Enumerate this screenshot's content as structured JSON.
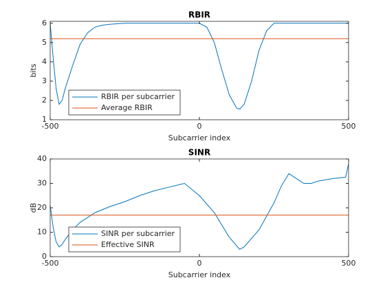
{
  "chart_data": [
    {
      "type": "line",
      "title": "RBIR",
      "x_label": "Subcarrier index",
      "y_label": "bits",
      "xlim": [
        -500,
        500
      ],
      "xticks": [
        -500,
        0,
        500
      ],
      "ylim": [
        1,
        6.1
      ],
      "yticks": [
        1,
        2,
        3,
        4,
        5,
        6
      ],
      "grid": false,
      "legend": "lower-left",
      "series": [
        {
          "name": "RBIR per subcarrier",
          "color": "#0072bd",
          "x": [
            -500,
            -490,
            -480,
            -470,
            -460,
            -450,
            -425,
            -400,
            -375,
            -350,
            -325,
            -300,
            -250,
            -200,
            -150,
            -100,
            -50,
            0,
            25,
            50,
            75,
            100,
            125,
            135,
            150,
            175,
            200,
            225,
            250,
            300,
            350,
            400,
            450,
            500
          ],
          "values": [
            6.0,
            4.2,
            2.6,
            1.8,
            2.0,
            2.6,
            3.8,
            4.9,
            5.5,
            5.8,
            5.9,
            5.95,
            6.0,
            6.0,
            6.0,
            6.0,
            6.0,
            6.0,
            5.8,
            5.0,
            3.6,
            2.3,
            1.6,
            1.55,
            1.8,
            3.0,
            4.6,
            5.6,
            6.0,
            6.0,
            6.0,
            6.0,
            6.0,
            6.0
          ]
        },
        {
          "name": "Average RBIR",
          "color": "#d95319",
          "x": [
            -500,
            500
          ],
          "values": [
            5.2,
            5.2
          ]
        }
      ]
    },
    {
      "type": "line",
      "title": "SINR",
      "x_label": "Subcarrier index",
      "y_label": "dB",
      "xlim": [
        -500,
        500
      ],
      "xticks": [
        -500,
        0,
        500
      ],
      "ylim": [
        0,
        40
      ],
      "yticks": [
        0,
        10,
        20,
        30,
        40
      ],
      "grid": false,
      "legend": "lower-left",
      "series": [
        {
          "name": "SINR per subcarrier",
          "color": "#0072bd",
          "x": [
            -500,
            -490,
            -480,
            -470,
            -460,
            -450,
            -425,
            -400,
            -375,
            -350,
            -300,
            -250,
            -200,
            -150,
            -100,
            -50,
            0,
            50,
            100,
            135,
            150,
            200,
            250,
            275,
            300,
            325,
            350,
            375,
            400,
            450,
            490,
            500
          ],
          "values": [
            21,
            12,
            6,
            4,
            5,
            7,
            11,
            14,
            16,
            18,
            20.5,
            22.5,
            25,
            27,
            28.5,
            30,
            25,
            18,
            8,
            3,
            4,
            11,
            22,
            29,
            34,
            32,
            30,
            30,
            31,
            32,
            32.5,
            38
          ]
        },
        {
          "name": "Effective SINR",
          "color": "#d95319",
          "x": [
            -500,
            500
          ],
          "values": [
            17,
            17
          ]
        }
      ]
    }
  ]
}
